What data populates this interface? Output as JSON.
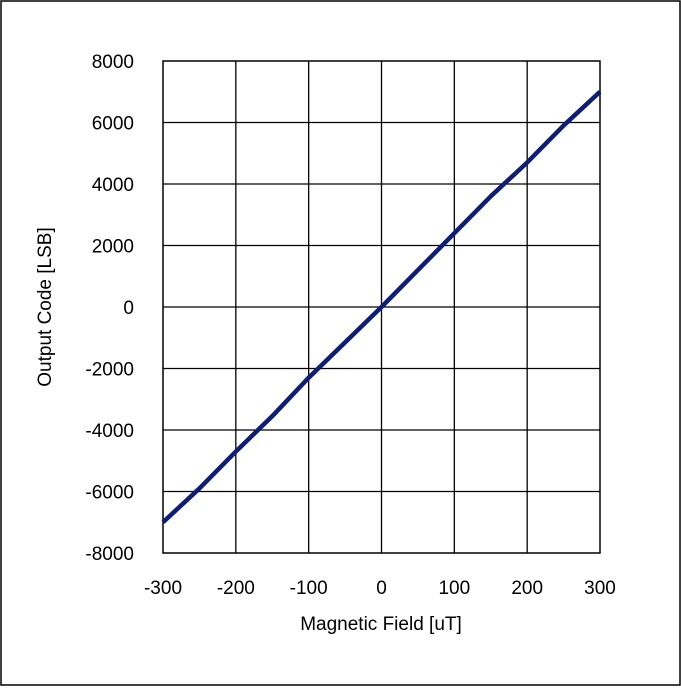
{
  "chart_data": {
    "type": "line",
    "title": "",
    "xlabel": "Magnetic Field [uT]",
    "ylabel": "Output Code [LSB]",
    "xlim": [
      -300,
      300
    ],
    "ylim": [
      -8000,
      8000
    ],
    "x_ticks": [
      -300,
      -200,
      -100,
      0,
      100,
      200,
      300
    ],
    "y_ticks": [
      -8000,
      -6000,
      -4000,
      -2000,
      0,
      2000,
      4000,
      6000,
      8000
    ],
    "x_tick_labels": [
      "-300",
      "-200",
      "-100",
      "0",
      "100",
      "200",
      "300"
    ],
    "y_tick_labels": [
      "-8000",
      "-6000",
      "-4000",
      "-2000",
      "0",
      "2000",
      "4000",
      "6000",
      "8000"
    ],
    "grid": true,
    "legend": "none",
    "series": [
      {
        "color": "#0f1e73",
        "x": [
          -300,
          -250,
          -200,
          -150,
          -100,
          -50,
          0,
          50,
          100,
          150,
          200,
          250,
          300
        ],
        "y": [
          -7000,
          -5900,
          -4700,
          -3550,
          -2300,
          -1150,
          0,
          1200,
          2400,
          3600,
          4700,
          5900,
          7000
        ]
      }
    ]
  }
}
